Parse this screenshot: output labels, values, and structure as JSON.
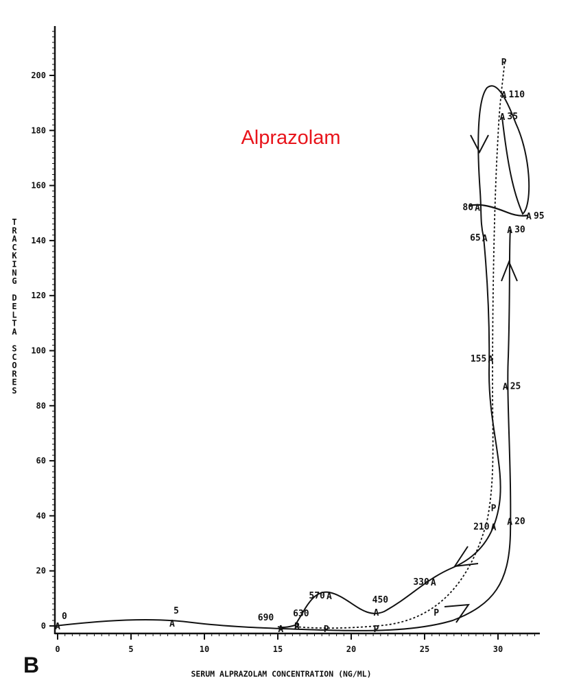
{
  "panel_label": "B",
  "title": "Alprazolam",
  "title_color": "#e8141b",
  "chart_data": {
    "type": "line",
    "title": "Alprazolam",
    "xlabel": "SERUM ALPRAZOLAM CONCENTRATION (NG/ML)",
    "ylabel": "TRACKING DELTA SCORES",
    "xlim": [
      0,
      33
    ],
    "ylim": [
      0,
      218
    ],
    "x_ticks": [
      0,
      5,
      10,
      15,
      20,
      25,
      30
    ],
    "y_ticks": [
      0,
      20,
      40,
      60,
      80,
      100,
      120,
      140,
      160,
      180,
      200
    ],
    "y_tick_labels": [
      "0",
      "20",
      "40",
      "60",
      "80",
      "100",
      "120",
      "140",
      "160",
      "180",
      "200"
    ],
    "grid": false,
    "series": [
      {
        "marker": "A",
        "style": "solid",
        "points": [
          {
            "label": "0",
            "x": 0,
            "y": 0
          },
          {
            "label": "5",
            "x": 7.8,
            "y": 1
          },
          {
            "label": "20",
            "x": 30.8,
            "y": 38
          },
          {
            "label": "25",
            "x": 30.5,
            "y": 87
          },
          {
            "label": "30",
            "x": 30.8,
            "y": 144
          },
          {
            "label": "35",
            "x": 30.3,
            "y": 185
          },
          {
            "label": "65",
            "x": 29.1,
            "y": 141
          },
          {
            "label": "80",
            "x": 28.6,
            "y": 152
          },
          {
            "label": "95",
            "x": 32.1,
            "y": 149
          },
          {
            "label": "110",
            "x": 30.4,
            "y": 193
          },
          {
            "label": "155",
            "x": 29.5,
            "y": 97
          },
          {
            "label": "210",
            "x": 29.7,
            "y": 36
          },
          {
            "label": "330",
            "x": 25.6,
            "y": 16
          },
          {
            "label": "450",
            "x": 21.7,
            "y": 5
          },
          {
            "label": "570",
            "x": 18.5,
            "y": 11
          },
          {
            "label": "630",
            "x": 16.3,
            "y": 0
          },
          {
            "label": "690",
            "x": 15.2,
            "y": -1
          }
        ]
      },
      {
        "marker": "P",
        "style": "dotted",
        "points": [
          {
            "x": 16.3,
            "y": 0
          },
          {
            "x": 18.3,
            "y": -1
          },
          {
            "x": 21.7,
            "y": -1
          },
          {
            "x": 25.8,
            "y": 5
          },
          {
            "x": 29.7,
            "y": 43
          },
          {
            "x": 30.4,
            "y": 205
          }
        ]
      }
    ]
  }
}
